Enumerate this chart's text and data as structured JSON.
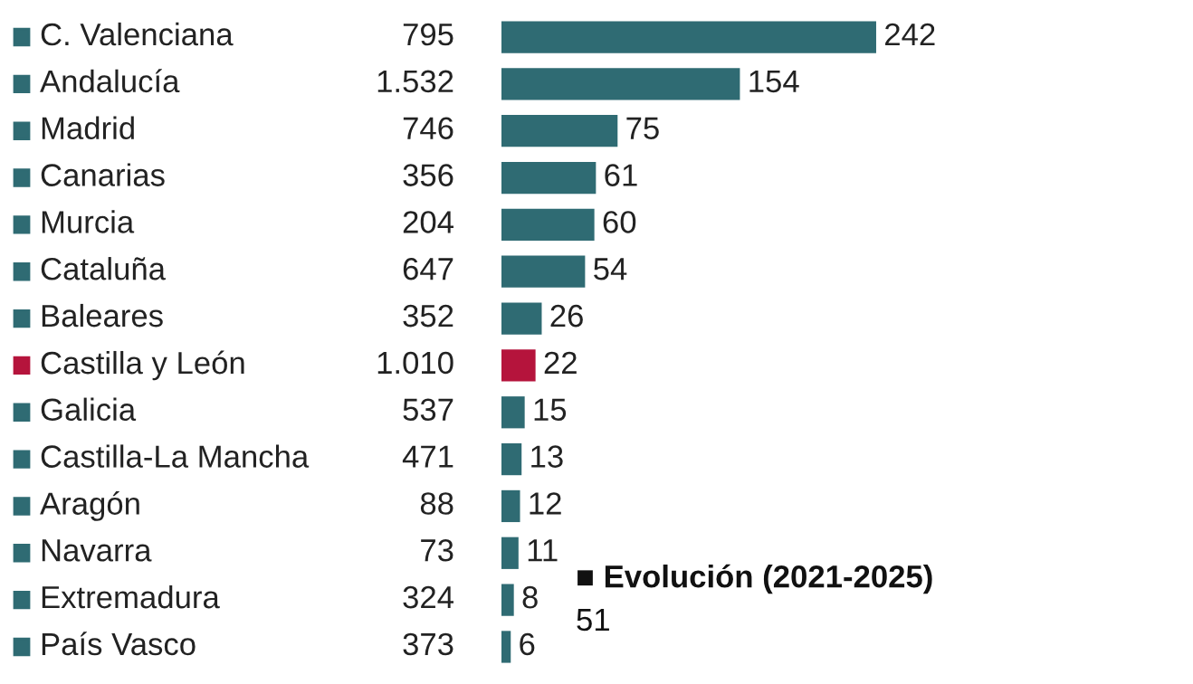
{
  "chart_data": {
    "type": "bar",
    "orientation": "horizontal",
    "data_labels": true,
    "categories": [
      "C. Valenciana",
      "Andalucía",
      "Madrid",
      "Canarias",
      "Murcia",
      "Cataluña",
      "Baleares",
      "Castilla y León",
      "Galicia",
      "Castilla-La Mancha",
      "Aragón",
      "Navarra",
      "Extremadura",
      "País Vasco"
    ],
    "values": [
      242,
      154,
      75,
      61,
      60,
      54,
      26,
      22,
      15,
      13,
      12,
      11,
      8,
      6
    ],
    "colors": [
      "#2f6b73",
      "#2f6b73",
      "#2f6b73",
      "#2f6b73",
      "#2f6b73",
      "#2f6b73",
      "#2f6b73",
      "#b5143c",
      "#2f6b73",
      "#2f6b73",
      "#2f6b73",
      "#2f6b73",
      "#2f6b73",
      "#2f6b73"
    ],
    "annotations": [
      "795",
      "1.532",
      "746",
      "356",
      "204",
      "647",
      "352",
      "1.010",
      "537",
      "471",
      "88",
      "73",
      "324",
      "373",
      "■ Evolución (2021-2025)",
      "51"
    ]
  }
}
